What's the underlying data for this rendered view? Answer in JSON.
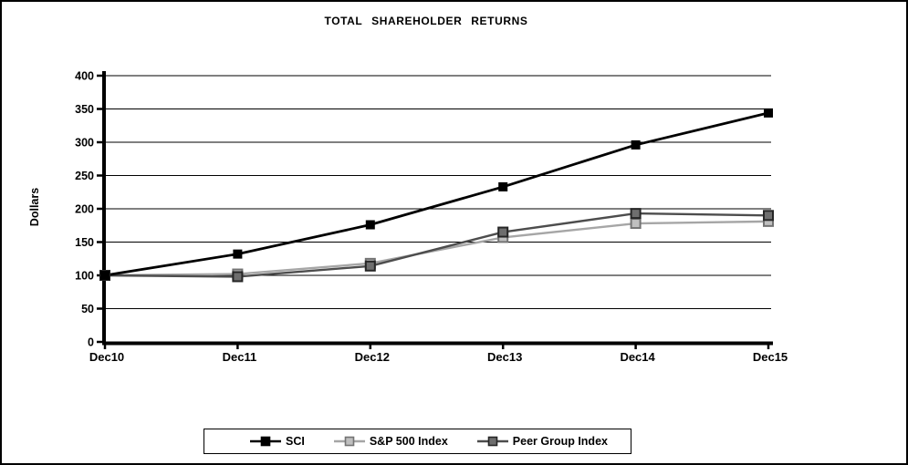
{
  "window": {
    "background_color": "#ffffff",
    "frame_border_color": "#000000"
  },
  "chart_data": {
    "type": "line",
    "title": "TOTAL SHAREHOLDER RETURNS",
    "ylabel": "Dollars",
    "xlabel": "",
    "categories": [
      "Dec10",
      "Dec11",
      "Dec12",
      "Dec13",
      "Dec14",
      "Dec15"
    ],
    "series": [
      {
        "name": "SCI",
        "values": [
          100,
          132,
          176,
          233,
          296,
          344
        ],
        "line_color": "#000000",
        "marker_fill": "#000000",
        "marker_stroke": "#000000",
        "marker_shape": "square"
      },
      {
        "name": "S&P 500 Index",
        "values": [
          100,
          102,
          118,
          157,
          178,
          181
        ],
        "line_color": "#a6a6a6",
        "marker_fill": "#bfbfbf",
        "marker_stroke": "#737373",
        "marker_shape": "square"
      },
      {
        "name": "Peer Group Index",
        "values": [
          100,
          98,
          114,
          165,
          193,
          190
        ],
        "line_color": "#4d4d4d",
        "marker_fill": "#6e6e6e",
        "marker_stroke": "#262626",
        "marker_shape": "square"
      }
    ],
    "ylim": [
      0,
      400
    ],
    "ytick_step": 50,
    "grid": true,
    "gridline_color": "#000000",
    "axis_color": "#000000",
    "text_color": "#000000",
    "legend_position": "bottom"
  }
}
